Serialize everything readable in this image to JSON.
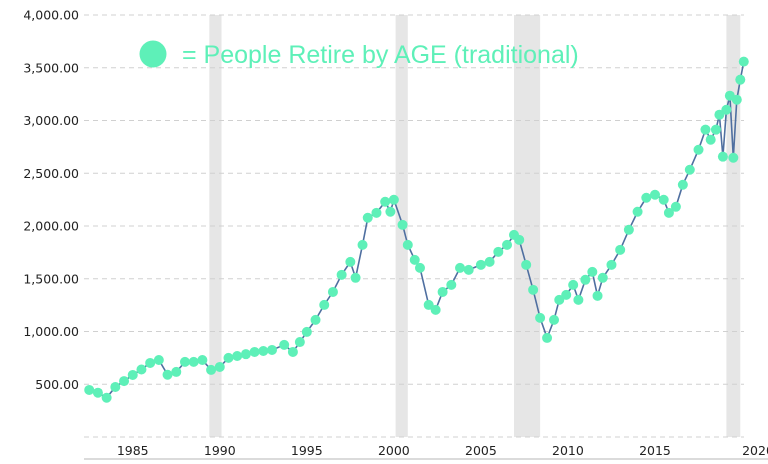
{
  "chart_data": {
    "type": "line",
    "title": "",
    "xlabel": "",
    "ylabel": "",
    "xlim": [
      1982.2,
      2020.4
    ],
    "ylim": [
      0,
      4000
    ],
    "grid": true,
    "y_ticks": [
      {
        "value": 500,
        "label": "500.00"
      },
      {
        "value": 1000,
        "label": "1,000.00"
      },
      {
        "value": 1500,
        "label": "1,500.00"
      },
      {
        "value": 2000,
        "label": "2,000.00"
      },
      {
        "value": 2500,
        "label": "2,500.00"
      },
      {
        "value": 3000,
        "label": "3,000.00"
      },
      {
        "value": 3500,
        "label": "3,500.00"
      },
      {
        "value": 4000,
        "label": "4,000.00"
      }
    ],
    "x_ticks": [
      {
        "value": 1985,
        "label": "1985"
      },
      {
        "value": 1990,
        "label": "1990"
      },
      {
        "value": 1995,
        "label": "1995"
      },
      {
        "value": 2000,
        "label": "2000"
      },
      {
        "value": 2005,
        "label": "2005"
      },
      {
        "value": 2010,
        "label": "2010"
      },
      {
        "value": 2015,
        "label": "2015"
      },
      {
        "value": 2020,
        "label": "2020"
      }
    ],
    "shaded_periods": [
      [
        1989.4,
        1990.1
      ],
      [
        2000.1,
        2000.8
      ],
      [
        2006.9,
        2008.4
      ],
      [
        2019.1,
        2019.9
      ]
    ],
    "legend": {
      "marker": "circle",
      "label": "= People Retire by AGE (traditional)",
      "placement": "top-left"
    },
    "colors": {
      "marker": "#5ef0b8",
      "line": "#4f6fa0",
      "shade": "#e6e6e6",
      "grid": "#d0d0d0"
    },
    "series": [
      {
        "x": [
          1982.5,
          1983.0,
          1983.5,
          1984.0,
          1984.5,
          1985.0,
          1985.5,
          1986.0,
          1986.5,
          1987.0,
          1987.5,
          1988.0,
          1988.5,
          1989.0,
          1989.5,
          1990.0,
          1990.5,
          1991.0,
          1991.5,
          1992.0,
          1992.5,
          1993.0,
          1993.7,
          1994.2,
          1994.6,
          1995.0,
          1995.5,
          1996.0,
          1996.5,
          1997.0,
          1997.5,
          1997.8,
          1998.2,
          1998.5,
          1999.0,
          1999.5,
          1999.8,
          2000.0,
          2000.5,
          2000.8,
          2001.2,
          2001.5,
          2002.0,
          2002.4,
          2002.8,
          2003.3,
          2003.8,
          2004.3,
          2005.0,
          2005.5,
          2006.0,
          2006.5,
          2006.9,
          2007.2,
          2007.6,
          2008.0,
          2008.4,
          2008.8,
          2009.2,
          2009.5,
          2009.9,
          2010.3,
          2010.6,
          2011.0,
          2011.4,
          2011.7,
          2012.0,
          2012.5,
          2013.0,
          2013.5,
          2014.0,
          2014.5,
          2015.0,
          2015.5,
          2015.8,
          2016.2,
          2016.6,
          2017.0,
          2017.5,
          2017.9,
          2018.2,
          2018.5,
          2018.7,
          2018.9,
          2019.1,
          2019.3,
          2019.5,
          2019.7,
          2019.9,
          2020.1
        ],
        "values": [
          446,
          420,
          372,
          474,
          530,
          588,
          640,
          702,
          730,
          590,
          617,
          712,
          712,
          730,
          636,
          664,
          750,
          768,
          785,
          806,
          815,
          825,
          873,
          806,
          900,
          996,
          1110,
          1252,
          1375,
          1537,
          1660,
          1509,
          1821,
          2078,
          2125,
          2230,
          2135,
          2249,
          2011,
          1821,
          1679,
          1603,
          1252,
          1205,
          1375,
          1442,
          1603,
          1584,
          1632,
          1660,
          1755,
          1821,
          1916,
          1869,
          1632,
          1395,
          1129,
          939,
          1110,
          1300,
          1347,
          1442,
          1300,
          1490,
          1565,
          1338,
          1509,
          1632,
          1774,
          1964,
          2135,
          2268,
          2296,
          2249,
          2125,
          2182,
          2391,
          2533,
          2723,
          2913,
          2818,
          2913,
          3055,
          2657,
          3102,
          3235,
          2647,
          3197,
          3387,
          3558
        ]
      }
    ]
  }
}
